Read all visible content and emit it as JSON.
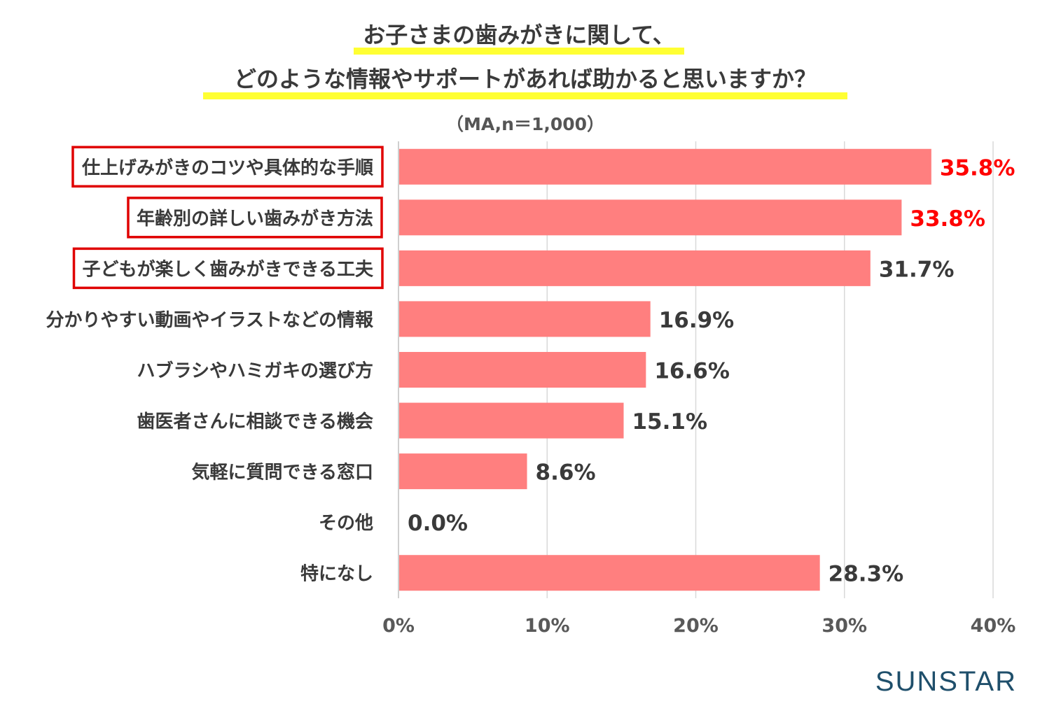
{
  "title_line1": "お子さまの歯みがきに関して、",
  "title_line2": "どのような情報やサポートがあれば助かると思いますか？",
  "subtitle": "（MA,n＝1,000）",
  "logo": "SUNSTAR",
  "colors": {
    "bar": "#ff7f7f",
    "highlight_value": "#ff0000",
    "normal_value": "#3a3a3a",
    "box_border": "#e00000",
    "title_highlight": "#ffff33",
    "logo": "#1f4f6b"
  },
  "chart_data": {
    "type": "bar",
    "orientation": "horizontal",
    "categories": [
      "仕上げみがきのコツや具体的な手順",
      "年齢別の詳しい歯みがき方法",
      "子どもが楽しく歯みがきできる工夫",
      "分かりやすい動画やイラストなどの情報",
      "ハブラシやハミガキの選び方",
      "歯医者さんに相談できる機会",
      "気軽に質問できる窓口",
      "その他",
      "特になし"
    ],
    "values": [
      35.8,
      33.8,
      31.7,
      16.9,
      16.6,
      15.1,
      8.6,
      0.0,
      28.3
    ],
    "value_labels": [
      "35.8%",
      "33.8%",
      "31.7%",
      "16.9%",
      "16.6%",
      "15.1%",
      "8.6%",
      "0.0%",
      "28.3%"
    ],
    "highlighted_values": [
      0,
      1
    ],
    "boxed_categories": [
      0,
      1,
      2
    ],
    "xlim": [
      0,
      40
    ],
    "xticks": [
      "0%",
      "10%",
      "20%",
      "30%",
      "40%"
    ],
    "grid": true
  }
}
